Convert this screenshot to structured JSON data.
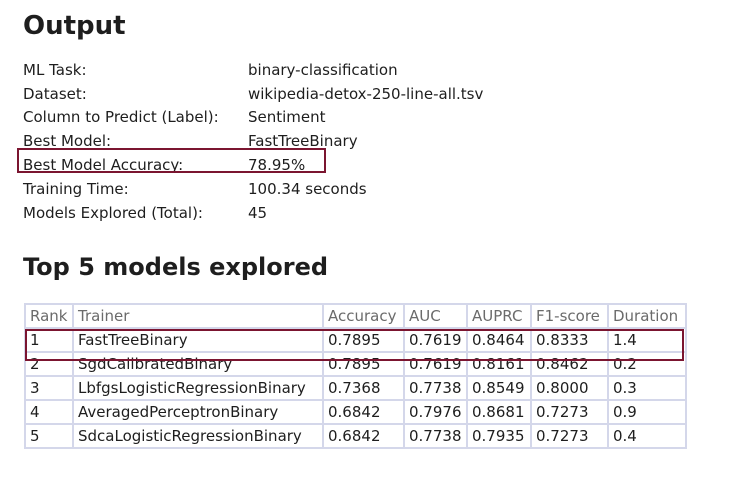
{
  "output": {
    "heading": "Output",
    "rows": [
      {
        "key": "ML Task:",
        "value": "binary-classification"
      },
      {
        "key": "Dataset:",
        "value": "wikipedia-detox-250-line-all.tsv"
      },
      {
        "key": "Column to Predict (Label):",
        "value": "Sentiment"
      },
      {
        "key": "Best Model:",
        "value": "FastTreeBinary"
      },
      {
        "key": "Best Model Accuracy:",
        "value": "78.95%"
      },
      {
        "key": "Training Time:",
        "value": "100.34 seconds"
      },
      {
        "key": "Models Explored (Total):",
        "value": "45"
      }
    ]
  },
  "top_models": {
    "heading": "Top 5 models explored",
    "columns": [
      "Rank",
      "Trainer",
      "Accuracy",
      "AUC",
      "AUPRC",
      "F1-score",
      "Duration"
    ],
    "rows": [
      [
        "1",
        "FastTreeBinary",
        "0.7895",
        "0.7619",
        "0.8464",
        "0.8333",
        "1.4"
      ],
      [
        "2",
        "SgdCalibratedBinary",
        "0.7895",
        "0.7619",
        "0.8161",
        "0.8462",
        "0.2"
      ],
      [
        "3",
        "LbfgsLogisticRegressionBinary",
        "0.7368",
        "0.7738",
        "0.8549",
        "0.8000",
        "0.3"
      ],
      [
        "4",
        "AveragedPerceptronBinary",
        "0.6842",
        "0.7976",
        "0.8681",
        "0.7273",
        "0.9"
      ],
      [
        "5",
        "SdcaLogisticRegressionBinary",
        "0.6842",
        "0.7738",
        "0.7935",
        "0.7273",
        "0.4"
      ]
    ]
  },
  "colors": {
    "highlight": "#7b1530",
    "table_border": "#d4d7ea",
    "header_text": "#6b6b6b"
  }
}
